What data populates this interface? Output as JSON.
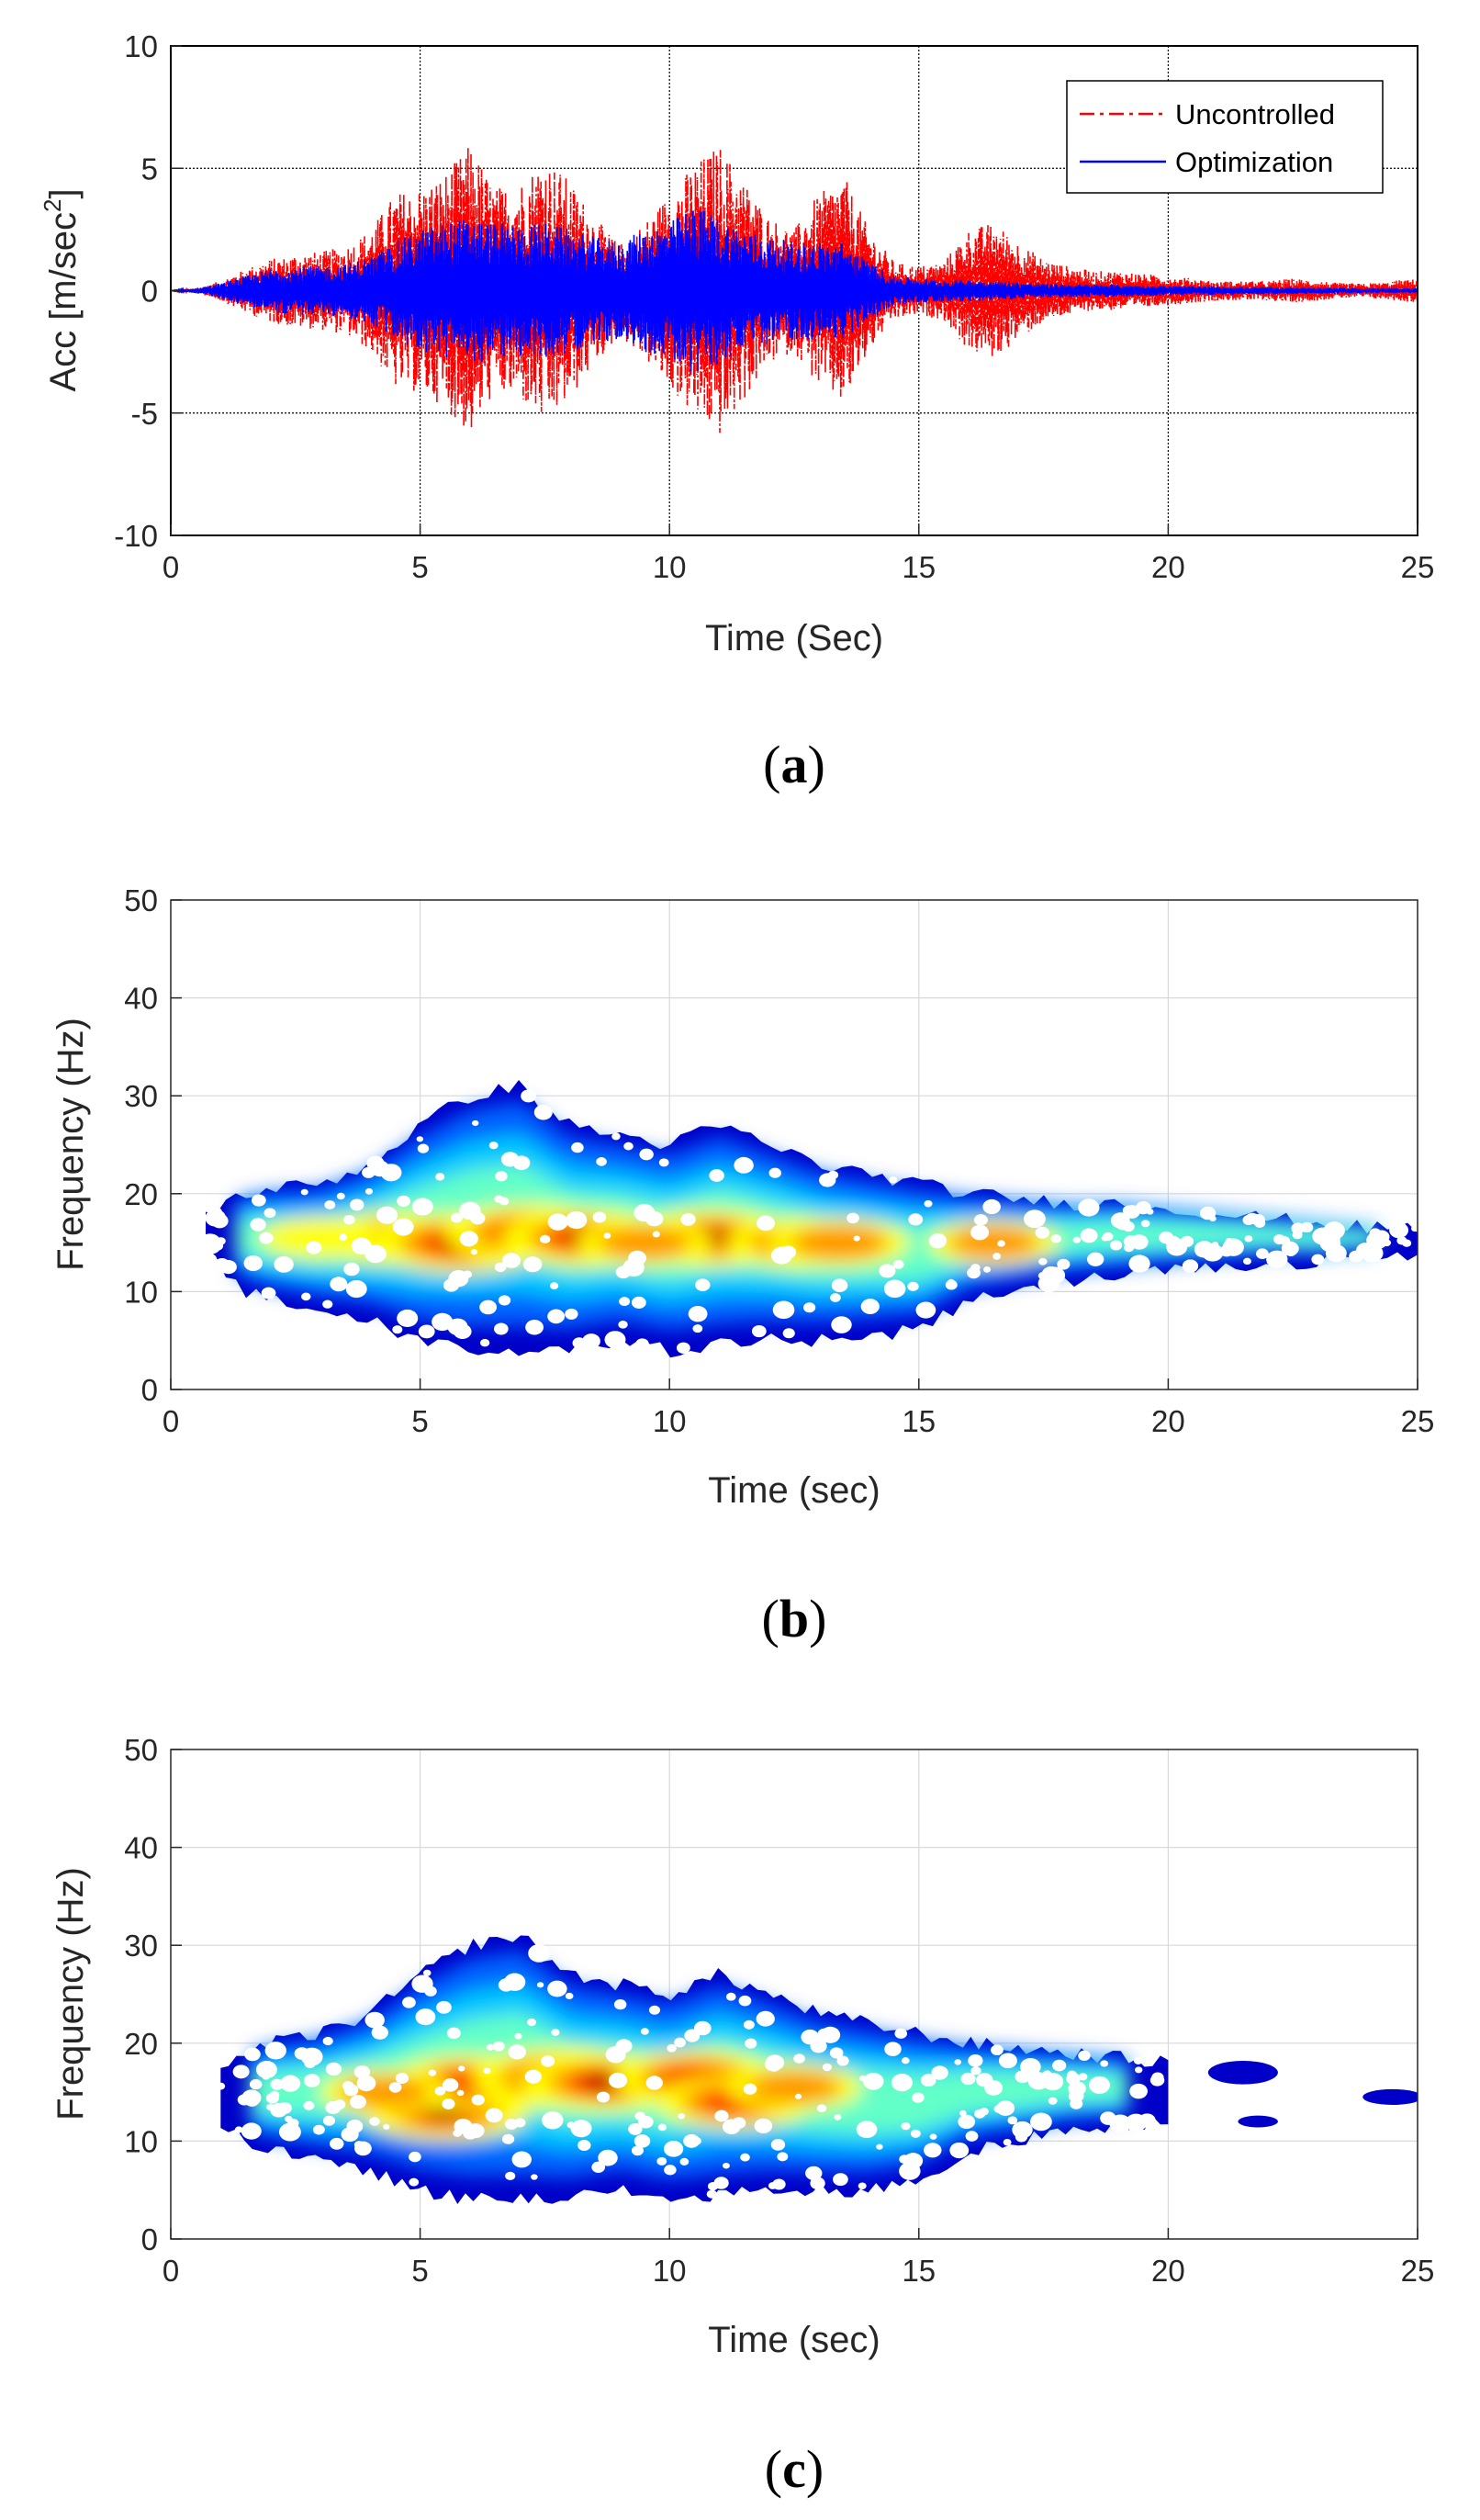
{
  "chart_data": [
    {
      "id": "a",
      "type": "line",
      "caption_letter": "a",
      "xlabel": "Time (Sec)",
      "ylabel_main": "Acc [m/sec",
      "ylabel_sup": "2",
      "ylabel_close": "]",
      "xlim": [
        0,
        25
      ],
      "ylim": [
        -10,
        10
      ],
      "xticks": [
        "0",
        "5",
        "10",
        "15",
        "20",
        "25"
      ],
      "yticks": [
        "10",
        "5",
        "0",
        "-5",
        "-10"
      ],
      "xtick_values": [
        0,
        5,
        10,
        15,
        20,
        25
      ],
      "ytick_values": [
        10,
        5,
        0,
        -5,
        -10
      ],
      "grid": true,
      "legend_position": "top-right",
      "colors": {
        "Uncontrolled": "#ff0000",
        "Optimization": "#0000ff"
      },
      "series": [
        {
          "name": "Uncontrolled",
          "style": "dash-dot",
          "envelope": {
            "t": [
              0,
              0.5,
              1,
              1.5,
              2,
              2.5,
              3,
              3.5,
              4,
              4.5,
              5,
              5.5,
              6,
              6.5,
              7,
              7.5,
              8,
              8.5,
              9,
              9.5,
              10,
              10.5,
              11,
              11.5,
              12,
              12.5,
              13,
              13.5,
              14,
              14.5,
              15,
              15.5,
              16,
              16.5,
              17,
              17.5,
              18,
              18.5,
              19,
              19.5,
              20,
              20.5,
              21,
              21.5,
              22,
              22.5,
              23,
              23.5,
              24,
              24.5,
              25
            ],
            "amp": [
              0,
              0.1,
              0.4,
              0.9,
              1.3,
              1.5,
              1.6,
              1.8,
              2.5,
              4,
              4.2,
              4.8,
              6,
              4.2,
              4.5,
              5.5,
              4.5,
              3,
              1.9,
              2.8,
              4,
              5.2,
              6,
              4.5,
              3,
              2.5,
              4,
              4.7,
              2.5,
              1.2,
              1,
              1.2,
              2.5,
              2.8,
              2,
              1.3,
              1,
              0.8,
              0.8,
              0.7,
              0.6,
              0.5,
              0.4,
              0.4,
              0.4,
              0.5,
              0.4,
              0.3,
              0.3,
              0.4,
              0.5
            ]
          }
        },
        {
          "name": "Optimization",
          "style": "solid",
          "envelope": {
            "t": [
              0,
              0.5,
              1,
              1.5,
              2,
              2.5,
              3,
              3.5,
              4,
              4.5,
              5,
              5.5,
              6,
              6.5,
              7,
              7.5,
              8,
              8.5,
              9,
              9.5,
              10,
              10.5,
              11,
              11.5,
              12,
              12.5,
              13,
              13.5,
              14,
              14.5,
              15,
              15.5,
              16,
              16.5,
              17,
              17.5,
              18,
              18.5,
              19,
              19.5,
              20,
              20.5,
              21,
              21.5,
              22,
              22.5,
              23,
              23.5,
              24,
              24.5,
              25
            ],
            "amp": [
              0,
              0.1,
              0.3,
              0.6,
              0.9,
              1,
              1,
              1.1,
              1.4,
              2,
              2.5,
              2.8,
              3,
              2.8,
              2.7,
              2.8,
              2.5,
              2.2,
              2,
              2.5,
              2.8,
              3.5,
              3,
              2.5,
              2.2,
              2,
              2,
              2,
              1.2,
              0.6,
              0.5,
              0.45,
              0.45,
              0.4,
              0.35,
              0.3,
              0.28,
              0.25,
              0.25,
              0.22,
              0.2,
              0.18,
              0.18,
              0.15,
              0.15,
              0.15,
              0.12,
              0.12,
              0.1,
              0.1,
              0.1
            ]
          }
        }
      ]
    },
    {
      "id": "b",
      "type": "heatmap",
      "caption_letter": "b",
      "xlabel": "Time (sec)",
      "ylabel": "Frequency (Hz)",
      "xlim": [
        0,
        25
      ],
      "ylim": [
        0,
        50
      ],
      "xticks": [
        "0",
        "5",
        "10",
        "15",
        "20",
        "25"
      ],
      "yticks": [
        "50",
        "40",
        "30",
        "20",
        "10",
        "0"
      ],
      "xtick_values": [
        0,
        5,
        10,
        15,
        20,
        25
      ],
      "ytick_values": [
        50,
        40,
        30,
        20,
        10,
        0
      ],
      "grid": true,
      "colormap": [
        "#0000c8",
        "#0064ff",
        "#00c8ff",
        "#64ffc8",
        "#ffff00",
        "#ff9600",
        "#ff0000",
        "#a00000"
      ],
      "envelope": {
        "t": [
          0.7,
          1.5,
          2,
          3,
          4,
          5,
          6,
          7,
          8,
          9,
          10,
          11,
          12,
          13,
          14,
          15,
          16,
          17,
          18,
          19,
          20,
          21,
          22,
          23,
          24,
          25
        ],
        "fmin": [
          14,
          10,
          9,
          8,
          7,
          5,
          4,
          4,
          4,
          5,
          4,
          4.5,
          5,
          5,
          5.5,
          6,
          9,
          10,
          11,
          11.5,
          12,
          12.5,
          13,
          13,
          13.5,
          13.5
        ],
        "fmax": [
          18,
          20,
          20.5,
          21,
          23,
          27,
          30,
          31,
          27,
          26,
          25,
          27,
          25,
          23,
          22,
          21,
          20,
          19.5,
          19,
          19,
          18.5,
          18,
          17.5,
          17,
          16.5,
          16.5
        ]
      },
      "hotspots": [
        {
          "t": 4.5,
          "f": 15.5,
          "intensity": 0.75
        },
        {
          "t": 5.8,
          "f": 15,
          "intensity": 1.0
        },
        {
          "t": 7.2,
          "f": 16,
          "intensity": 0.95
        },
        {
          "t": 8.3,
          "f": 15.5,
          "intensity": 0.9
        },
        {
          "t": 10.8,
          "f": 15.5,
          "intensity": 0.9
        },
        {
          "t": 12.6,
          "f": 15,
          "intensity": 0.7
        },
        {
          "t": 13.4,
          "f": 15,
          "intensity": 0.65
        },
        {
          "t": 16.5,
          "f": 15,
          "intensity": 0.55
        },
        {
          "t": 3,
          "f": 15.5,
          "intensity": 0.45
        },
        {
          "t": 9.5,
          "f": 15,
          "intensity": 0.6
        }
      ]
    },
    {
      "id": "c",
      "type": "heatmap",
      "caption_letter": "c",
      "xlabel": "Time (sec)",
      "ylabel": "Frequency (Hz)",
      "xlim": [
        0,
        25
      ],
      "ylim": [
        0,
        50
      ],
      "xticks": [
        "0",
        "5",
        "10",
        "15",
        "20",
        "25"
      ],
      "yticks": [
        "50",
        "40",
        "30",
        "20",
        "10",
        "0"
      ],
      "xtick_values": [
        0,
        5,
        10,
        15,
        20,
        25
      ],
      "ytick_values": [
        50,
        40,
        30,
        20,
        10,
        0
      ],
      "grid": true,
      "colormap": [
        "#0000c8",
        "#0064ff",
        "#00c8ff",
        "#64ffc8",
        "#ffff00",
        "#ff9600",
        "#ff0000",
        "#a00000"
      ],
      "envelope": {
        "t": [
          1,
          1.5,
          2,
          3,
          4,
          5,
          6,
          7,
          8,
          9,
          10,
          11,
          12,
          13,
          14,
          15,
          16,
          17,
          18,
          19,
          20
        ],
        "fmin": [
          12,
          10,
          9,
          8,
          7,
          5,
          4,
          4,
          4,
          5,
          4,
          4.5,
          5,
          5,
          5,
          6,
          9,
          10,
          11,
          11.5,
          12
        ],
        "fmax": [
          18,
          19,
          20,
          21,
          23,
          27,
          30,
          31,
          27,
          26,
          25,
          27,
          25,
          23,
          22,
          21,
          20,
          19.5,
          19,
          18.5,
          18
        ]
      },
      "islands": [
        {
          "t": 21.5,
          "f": 17,
          "dt": 0.7,
          "df": 1.2
        },
        {
          "t": 21.8,
          "f": 12,
          "dt": 0.4,
          "df": 0.6
        },
        {
          "t": 24.5,
          "f": 14.5,
          "dt": 0.6,
          "df": 0.8
        }
      ],
      "hotspots": [
        {
          "t": 5.5,
          "f": 13,
          "intensity": 0.9
        },
        {
          "t": 6,
          "f": 16,
          "intensity": 0.85
        },
        {
          "t": 7.8,
          "f": 16.5,
          "intensity": 1.0
        },
        {
          "t": 8.7,
          "f": 16,
          "intensity": 0.9
        },
        {
          "t": 10.5,
          "f": 16.5,
          "intensity": 0.85
        },
        {
          "t": 11.3,
          "f": 14,
          "intensity": 0.8
        },
        {
          "t": 12.5,
          "f": 15.5,
          "intensity": 0.6
        },
        {
          "t": 4.3,
          "f": 15,
          "intensity": 0.55
        }
      ]
    }
  ]
}
